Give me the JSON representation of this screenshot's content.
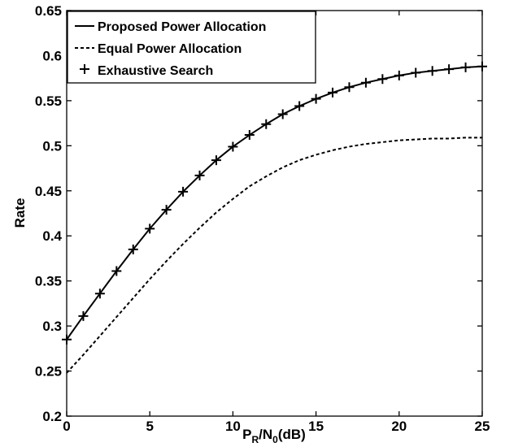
{
  "chart_data": {
    "type": "line",
    "xlabel": {
      "main": "P",
      "sub1": "R",
      "mid": "/N",
      "sub2": "0",
      "tail": "(dB)"
    },
    "ylabel": "Rate",
    "xlim": [
      0,
      25
    ],
    "ylim": [
      0.2,
      0.65
    ],
    "xticks": [
      0,
      5,
      10,
      15,
      20,
      25
    ],
    "yticks": [
      0.2,
      0.25,
      0.3,
      0.35,
      0.4,
      0.45,
      0.5,
      0.55,
      0.6,
      0.65
    ],
    "ytick_labels": [
      "0.2",
      "0.25",
      "0.3",
      "0.35",
      "0.4",
      "0.45",
      "0.5",
      "0.55",
      "0.6",
      "0.65"
    ],
    "grid": false,
    "legend_position": "top-left",
    "x": [
      0,
      1,
      2,
      3,
      4,
      5,
      6,
      7,
      8,
      9,
      10,
      11,
      12,
      13,
      14,
      15,
      16,
      17,
      18,
      19,
      20,
      21,
      22,
      23,
      24,
      25
    ],
    "series": [
      {
        "name": "Proposed Power Allocation",
        "style": "solid",
        "color": "#000000",
        "values": [
          0.285,
          0.311,
          0.336,
          0.361,
          0.385,
          0.408,
          0.429,
          0.449,
          0.467,
          0.484,
          0.499,
          0.512,
          0.524,
          0.535,
          0.544,
          0.552,
          0.559,
          0.565,
          0.57,
          0.574,
          0.578,
          0.581,
          0.583,
          0.585,
          0.587,
          0.588
        ]
      },
      {
        "name": "Equal Power Allocation",
        "style": "dashed",
        "color": "#000000",
        "values": [
          0.248,
          0.268,
          0.289,
          0.31,
          0.331,
          0.352,
          0.372,
          0.391,
          0.409,
          0.426,
          0.441,
          0.455,
          0.466,
          0.476,
          0.484,
          0.49,
          0.495,
          0.499,
          0.502,
          0.504,
          0.506,
          0.507,
          0.508,
          0.508,
          0.509,
          0.509
        ]
      },
      {
        "name": "Exhaustive Search",
        "style": "markers",
        "marker": "+",
        "color": "#000000",
        "values": [
          0.285,
          0.311,
          0.336,
          0.361,
          0.385,
          0.408,
          0.429,
          0.449,
          0.467,
          0.484,
          0.499,
          0.512,
          0.524,
          0.535,
          0.544,
          0.552,
          0.559,
          0.565,
          0.57,
          0.574,
          0.578,
          0.581,
          0.583,
          0.585,
          0.587,
          0.588
        ]
      }
    ]
  }
}
